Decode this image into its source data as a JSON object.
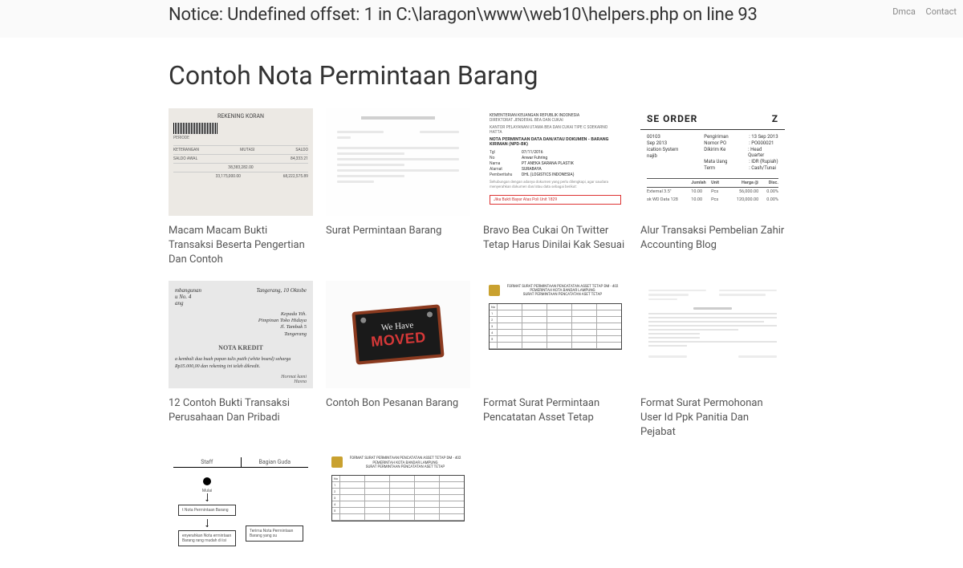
{
  "nav": {
    "dmca": "Dmca",
    "contact": "Contact"
  },
  "notice": "Notice: Undefined offset: 1 in C:\\laragon\\www\\web10\\helpers.php on line 93",
  "page_title": "Contoh Nota Permintaan Barang",
  "cards": [
    {
      "caption": "Macam Macam Bukti Transaksi Beserta Pengertian Dan Contoh"
    },
    {
      "caption": "Surat Permintaan Barang"
    },
    {
      "caption": "Bravo Bea Cukai On Twitter Tetap Harus Dinilai Kak Sesuai"
    },
    {
      "caption": "Alur Transaksi Pembelian Zahir Accounting Blog"
    },
    {
      "caption": "12 Contoh Bukti Transaksi Perusahaan Dan Pribadi"
    },
    {
      "caption": "Contoh Bon Pesanan Barang"
    },
    {
      "caption": "Format Surat Permintaan Pencatatan Asset Tetap"
    },
    {
      "caption": "Format Surat Permohonan User Id Ppk Panitia Dan Pejabat"
    }
  ],
  "thumb1": {
    "title": "REKENING KORAN",
    "rows": [
      {
        "l": "KETERANGAN",
        "m": "MUTASI",
        "r": "SALDO"
      },
      {
        "l": "SALDO AWAL",
        "m": "",
        "r": "84,333.21"
      },
      {
        "l": "",
        "m": "38,383,282.00",
        "r": ""
      },
      {
        "l": "",
        "m": "33,175,000.00",
        "r": "68,222,575.89"
      }
    ]
  },
  "thumb3": {
    "hdr1": "KEMENTERIAN KEUANGAN REPUBLIK INDONESIA",
    "hdr2": "DIREKTORAT JENDERAL BEA DAN CUKAI",
    "hdr3": "KANTOR PELAYANAN UTAMA BEA DAN CUKAI TIPE C SOEKARNO HATTA",
    "title": "NOTA PERMINTAAN DATA DAN/ATAU DOKUMEN - BARANG KIRIMAN (NPD-BK)",
    "kv": [
      {
        "k": "Tgl",
        "v": "07/11/2016"
      },
      {
        "k": "No",
        "v": "Anwar Fuhring"
      },
      {
        "k": "Nama",
        "v": "PT ANEKA SARANA PLASTIK"
      },
      {
        "k": "Alamat",
        "v": "SURABAYA"
      },
      {
        "k": "Pemberitahu",
        "v": "DHL (LOGISTICS INDONESIA)"
      }
    ],
    "redbox": "Jika Bukti Bayar Atas Poli Unit 1829"
  },
  "thumb4": {
    "title": "SE ORDER",
    "z": "Z",
    "left": [
      {
        "k": "00103",
        "v": ""
      },
      {
        "k": "Sep 2013",
        "v": ""
      },
      {
        "k": "ication System",
        "v": ""
      },
      {
        "k": "najib",
        "v": ""
      }
    ],
    "right": [
      {
        "k": "Pengiriman",
        "v": ": 13 Sep 2013"
      },
      {
        "k": "Nomor PO",
        "v": ": PO000021"
      },
      {
        "k": "Dikirim Ke",
        "v": ": Head Quarter"
      },
      {
        "k": "Mata Uang",
        "v": ": IDR (Rupiah)"
      },
      {
        "k": "Term",
        "v": ": Cash/Tunai"
      }
    ],
    "tbl_hdr": [
      "",
      "Jumlah",
      "Unit",
      "Harga @",
      "Disc."
    ],
    "tbl_rows": [
      [
        "External 3.5\"",
        "10.00",
        "Pcs",
        "56,000.00",
        "0.00%"
      ],
      [
        "sk WD Data 128",
        "10.00",
        "Pcs",
        "120,000.00",
        "0.00%"
      ]
    ]
  },
  "thumb5": {
    "top_l1": "mbangunan",
    "top_l2": "u No. 4",
    "top_l3": "ang",
    "top_r": "Tangerang, 10 Oktobe",
    "addr": [
      "Kepada Yth.",
      "Pimpinan Toko Hidaya",
      "Jl. Tambak 5",
      "Tangerang"
    ],
    "nk": "NOTA KREDIT",
    "body": "a kembali dua buah papan tulis putih (white board) seharga Rp35.000,00 dan rekening ini telah dikredit.",
    "sig1": "Hormat kami",
    "sig2": "Hasna"
  },
  "thumb6": {
    "l1": "We Have",
    "l2": "MOVED"
  },
  "thumb9": {
    "cols": [
      "Staff",
      "Bagian Guda"
    ],
    "start": "Mulai",
    "box1": "t Nota Permintaan Barang",
    "box2": "enyerahkan Nota ermintaan Barang rang mudah di isi",
    "box3": "Terima Nota Permintaan Barang yang su"
  }
}
